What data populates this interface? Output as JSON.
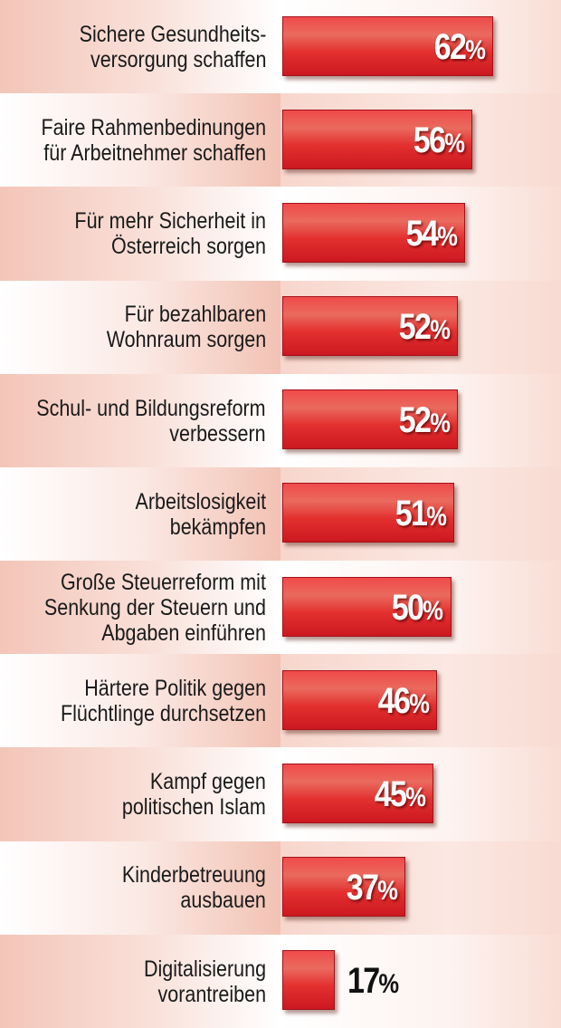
{
  "chart_data": {
    "type": "bar",
    "orientation": "horizontal",
    "categories": [
      "Sichere Gesundheits-\nversorgung schaffen",
      "Faire Rahmenbedinungen\nfür Arbeitnehmer schaffen",
      "Für mehr Sicherheit in\nÖsterreich sorgen",
      "Für bezahlbaren\nWohnraum sorgen",
      "Schul- und Bildungsreform\nverbessern",
      "Arbeitslosigkeit\nbekämpfen",
      "Große Steuerreform mit\nSenkung der Steuern und\nAbgaben einführen",
      "Härtere Politik gegen\nFlüchtlinge durchsetzen",
      "Kampf gegen\npolitischen Islam",
      "Kinderbetreuung\nausbauen",
      "Digitalisierung\nvorantreiben"
    ],
    "values": [
      62,
      56,
      54,
      52,
      52,
      51,
      50,
      46,
      45,
      37,
      17
    ],
    "value_labels": [
      "62",
      "56",
      "54",
      "52",
      "52",
      "51",
      "50",
      "46",
      "45",
      "37",
      "17"
    ],
    "unit": "%",
    "bar_color": "#e02a2c",
    "grid": false
  }
}
